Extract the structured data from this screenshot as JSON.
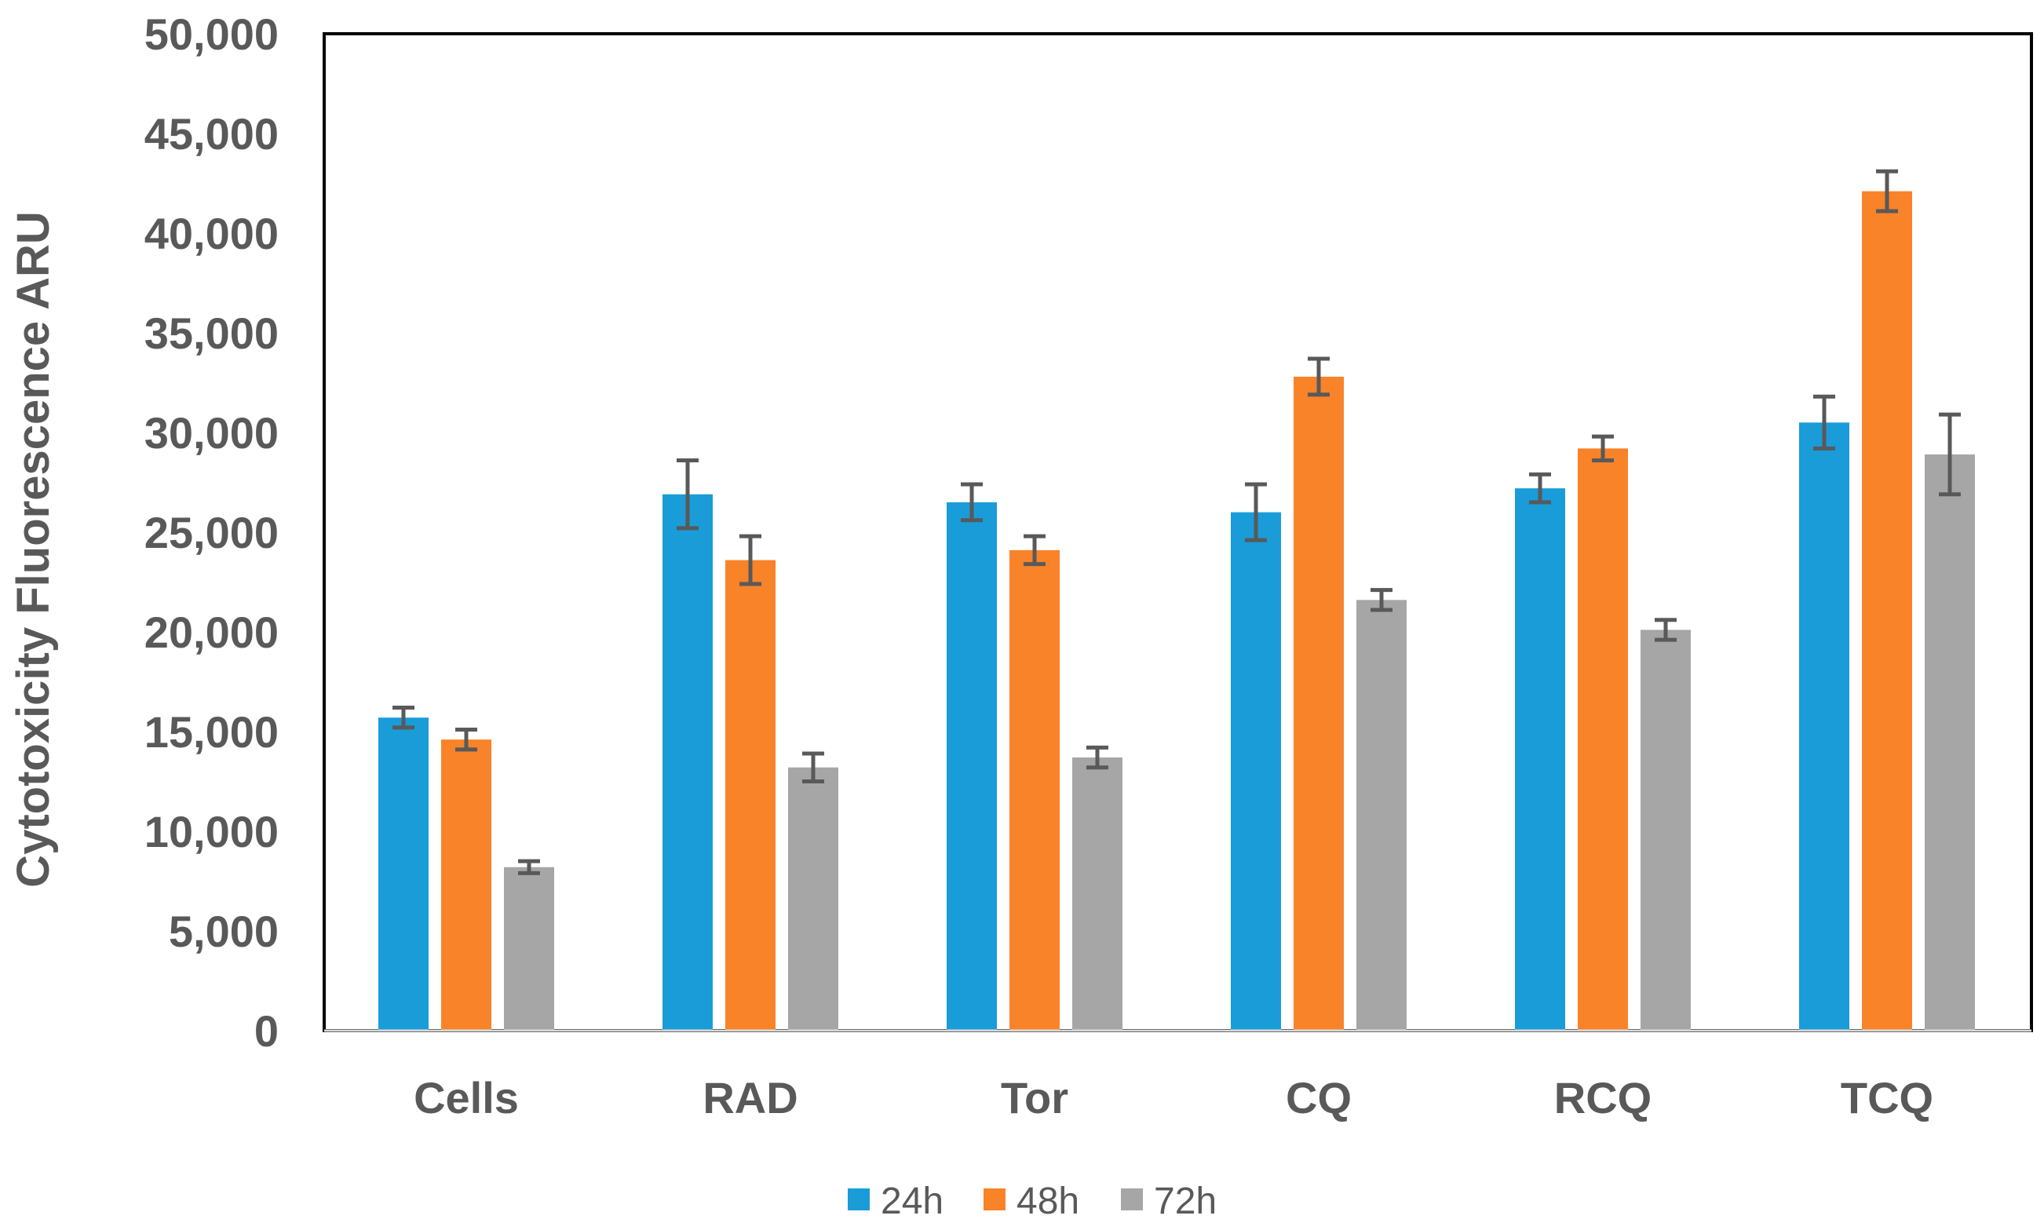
{
  "chart_data": {
    "type": "bar",
    "title": "",
    "xlabel": "",
    "ylabel": "Cytotoxicity Fluorescence ARU",
    "ylim": [
      0,
      50000
    ],
    "yticks": [
      0,
      5000,
      10000,
      15000,
      20000,
      25000,
      30000,
      35000,
      40000,
      45000,
      50000
    ],
    "ytick_labels": [
      "0",
      "5,000",
      "10,000",
      "15,000",
      "20,000",
      "25,000",
      "30,000",
      "35,000",
      "40,000",
      "45,000",
      "50,000"
    ],
    "categories": [
      "Cells",
      "RAD",
      "Tor",
      "CQ",
      "RCQ",
      "TCQ"
    ],
    "series": [
      {
        "name": "24h",
        "color": "#1a9cd8",
        "values": [
          15700,
          26900,
          26500,
          26000,
          27200,
          30500
        ],
        "errors": [
          500,
          1700,
          900,
          1400,
          700,
          1300
        ]
      },
      {
        "name": "48h",
        "color": "#f88329",
        "values": [
          14600,
          23600,
          24100,
          32800,
          29200,
          42100
        ],
        "errors": [
          500,
          1200,
          700,
          900,
          600,
          1000
        ]
      },
      {
        "name": "72h",
        "color": "#a6a6a6",
        "values": [
          8200,
          13200,
          13700,
          21600,
          20100,
          28900
        ],
        "errors": [
          300,
          700,
          500,
          500,
          500,
          2000
        ]
      }
    ],
    "grid": false,
    "legend_position": "bottom"
  }
}
